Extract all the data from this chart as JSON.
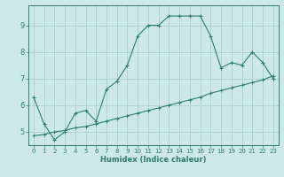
{
  "xlabel": "Humidex (Indice chaleur)",
  "bg_color": "#cce8e8",
  "line_color": "#2e7d6e",
  "grid_color": "#aacfcf",
  "line1_x": [
    0,
    1,
    2,
    3,
    4,
    5,
    6,
    7,
    8,
    9,
    10,
    11,
    12,
    13,
    14,
    15,
    16,
    17,
    18,
    19,
    20,
    21,
    22,
    23
  ],
  "line1_y": [
    6.3,
    5.3,
    4.7,
    5.0,
    5.7,
    5.8,
    5.4,
    6.6,
    6.9,
    7.5,
    8.6,
    9.0,
    9.0,
    9.35,
    9.35,
    9.35,
    9.35,
    8.6,
    7.4,
    7.6,
    7.5,
    8.0,
    7.6,
    7.0
  ],
  "line2_x": [
    0,
    1,
    2,
    3,
    4,
    5,
    6,
    7,
    8,
    9,
    10,
    11,
    12,
    13,
    14,
    15,
    16,
    17,
    18,
    19,
    20,
    21,
    22,
    23
  ],
  "line2_y": [
    4.85,
    4.9,
    5.0,
    5.05,
    5.15,
    5.2,
    5.3,
    5.4,
    5.5,
    5.6,
    5.7,
    5.8,
    5.9,
    6.0,
    6.1,
    6.2,
    6.3,
    6.45,
    6.55,
    6.65,
    6.75,
    6.85,
    6.95,
    7.1
  ],
  "xlim": [
    -0.5,
    23.5
  ],
  "ylim": [
    4.5,
    9.75
  ],
  "yticks": [
    5,
    6,
    7,
    8,
    9
  ],
  "xticks": [
    0,
    1,
    2,
    3,
    4,
    5,
    6,
    7,
    8,
    9,
    10,
    11,
    12,
    13,
    14,
    15,
    16,
    17,
    18,
    19,
    20,
    21,
    22,
    23
  ]
}
